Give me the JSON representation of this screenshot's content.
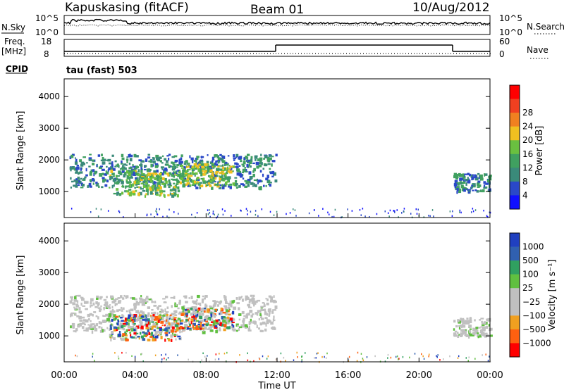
{
  "header": {
    "radar": "Kapuskasing (fitACF)",
    "beam": "Beam 01",
    "date": "10/Aug/2012"
  },
  "top_panels": {
    "nsky_label": "N.Sky",
    "nsky_ticks": [
      "10^5",
      "10^0"
    ],
    "nsearch_label": "N.Search",
    "nsearch_ticks": [
      "10^5",
      "10^0"
    ],
    "freq_label": "Freq.",
    "freq_unit": "[MHz]",
    "freq_ticks": [
      "18",
      "8"
    ],
    "nave_label": "Nave",
    "nave_ticks": [
      "60",
      "0"
    ],
    "cpid_label": "CPID",
    "cpid_value": "tau (fast) 503"
  },
  "colors": {
    "power": [
      "#1010ff",
      "#2a48c8",
      "#3a8a7a",
      "#40a060",
      "#6ac040",
      "#f0c020",
      "#f08020",
      "#f04020",
      "#ff0000"
    ],
    "velocity": [
      "#ff0000",
      "#ff6010",
      "#f0a020",
      "#c0c0c0",
      "#c0c0c0",
      "#60c040",
      "#30a060",
      "#3060b0",
      "#2040c0"
    ],
    "ground": "#c0c0c0"
  },
  "chart_data": [
    {
      "type": "heatmap",
      "name": "power",
      "ylabel": "Slant Range [km]",
      "y_ticks": [
        "1000",
        "2000",
        "3000",
        "4000"
      ],
      "ylim": [
        180,
        4560
      ],
      "xlim": [
        0,
        24
      ],
      "colorbar_label": "Power [dB]",
      "colorbar_ticks": [
        "4",
        "8",
        "12",
        "16",
        "20",
        "24",
        "28"
      ],
      "colorbar_range": [
        0,
        32
      ],
      "echo_regions": [
        {
          "t0": 0.3,
          "t1": 11.9,
          "r0": 1150,
          "r1": 2200,
          "level": 8
        },
        {
          "t0": 2.5,
          "t1": 6.5,
          "r0": 900,
          "r1": 1700,
          "level": 14
        },
        {
          "t0": 6.5,
          "t1": 9.5,
          "r0": 1200,
          "r1": 1900,
          "level": 16
        },
        {
          "t0": 21.9,
          "t1": 24,
          "r0": 1000,
          "r1": 1600,
          "level": 8
        }
      ]
    },
    {
      "type": "heatmap",
      "name": "velocity",
      "ylabel": "Slant Range [km]",
      "y_ticks": [
        "1000",
        "2000",
        "3000",
        "4000"
      ],
      "ylim": [
        180,
        4560
      ],
      "xlim": [
        0,
        24
      ],
      "colorbar_label": "Velocity [m s⁻¹]",
      "colorbar_ticks": [
        "1000",
        "500",
        "100",
        "25",
        "−25",
        "−100",
        "−500",
        "−1000"
      ],
      "echo_regions": [
        {
          "t0": 0.3,
          "t1": 11.9,
          "r0": 1150,
          "r1": 2300,
          "level": "ground"
        },
        {
          "t0": 2.5,
          "t1": 6.5,
          "r0": 900,
          "r1": 1700,
          "level": "mixed"
        },
        {
          "t0": 6.5,
          "t1": 9.5,
          "r0": 1200,
          "r1": 1900,
          "level": "mixed"
        },
        {
          "t0": 21.9,
          "t1": 24,
          "r0": 1000,
          "r1": 1600,
          "level": "ground"
        }
      ]
    }
  ],
  "xaxis": {
    "label": "Time UT",
    "ticks": [
      "00:00",
      "04:00",
      "08:00",
      "12:00",
      "16:00",
      "20:00",
      "00:00"
    ]
  }
}
